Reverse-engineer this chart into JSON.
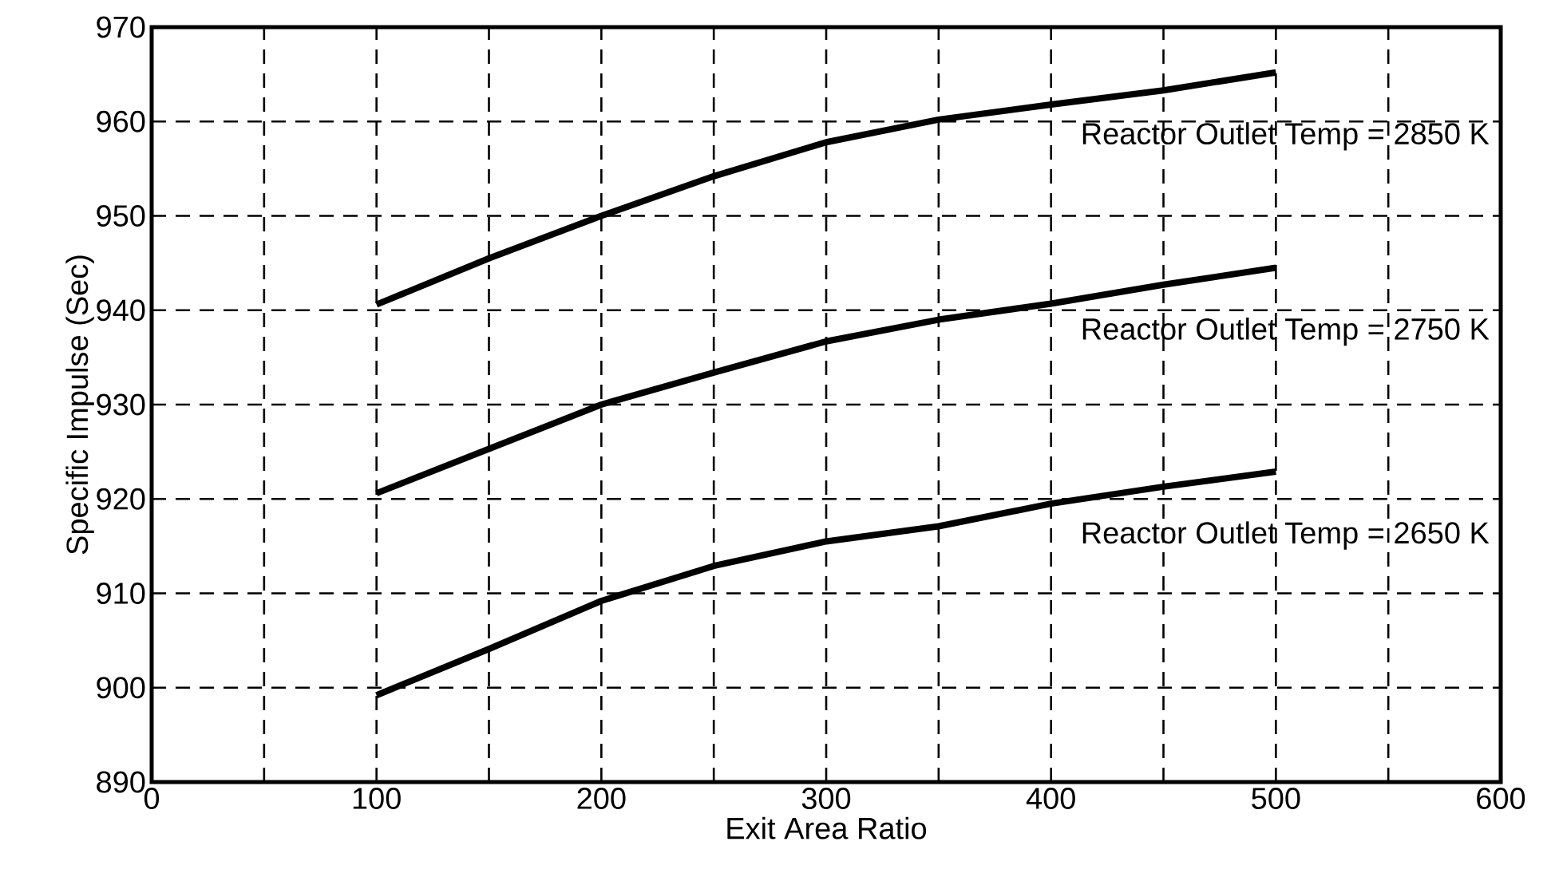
{
  "chart_data": {
    "type": "line",
    "xlabel": "Exit Area Ratio",
    "ylabel": "Specific Impulse (Sec)",
    "x": [
      100,
      150,
      200,
      250,
      300,
      350,
      400,
      450,
      500
    ],
    "series": [
      {
        "name": "Reactor Outlet Temp = 2850 K",
        "color": "#000000",
        "values": [
          940.6,
          945.5,
          950,
          954.2,
          957.8,
          960.2,
          961.8,
          963.3,
          965.2
        ]
      },
      {
        "name": "Reactor Outlet Temp = 2750 K",
        "color": "#000000",
        "values": [
          920.6,
          925.3,
          930,
          933.4,
          936.7,
          939,
          940.7,
          942.7,
          944.5
        ]
      },
      {
        "name": "Reactor Outlet Temp = 2650 K",
        "color": "#000000",
        "values": [
          899.2,
          904.1,
          909.2,
          912.9,
          915.5,
          917.1,
          919.5,
          921.3,
          922.9
        ]
      }
    ],
    "xlim": [
      0,
      600
    ],
    "ylim": [
      890,
      970
    ],
    "xticks": [
      0,
      {
        "value": 50,
        "label": null
      },
      100,
      {
        "value": 150,
        "label": null
      },
      200,
      {
        "value": 250,
        "label": null
      },
      300,
      {
        "value": 350,
        "label": null
      },
      400,
      {
        "value": 450,
        "label": null
      },
      500,
      {
        "value": 550,
        "label": null
      },
      600
    ],
    "yticks": [
      890,
      900,
      910,
      920,
      930,
      940,
      950,
      960,
      970
    ],
    "grid": true,
    "marker": "none",
    "line_style": "solid"
  }
}
